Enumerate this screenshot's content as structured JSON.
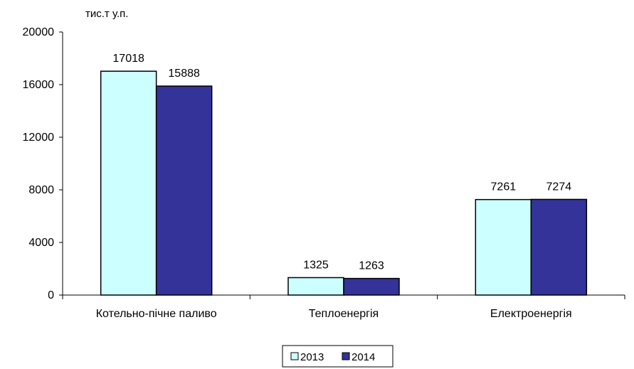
{
  "chart_data": {
    "type": "bar",
    "title": "",
    "ylabel": "тис.т у.п.",
    "xlabel": "",
    "categories": [
      "Котельно-пічне паливо",
      "Теплоенергія",
      "Електроенергія"
    ],
    "series": [
      {
        "name": "2013",
        "values": [
          17018,
          1325,
          7261
        ],
        "color": "#CCFFFF"
      },
      {
        "name": "2014",
        "values": [
          15888,
          1263,
          7274
        ],
        "color": "#333399"
      }
    ],
    "ylim": [
      0,
      20000
    ],
    "yticks": [
      "0",
      "4000",
      "8000",
      "12000",
      "16000",
      "20000"
    ],
    "grid": false,
    "legend_position": "bottom"
  }
}
